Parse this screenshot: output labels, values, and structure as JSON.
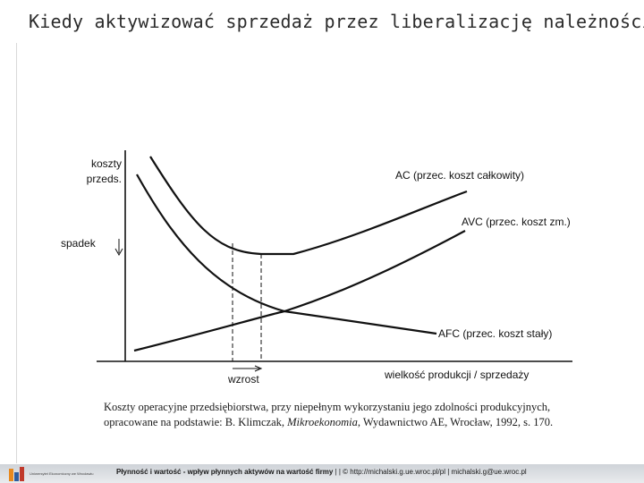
{
  "slide": {
    "title": "Kiedy aktywizować sprzedaż przez liberalizację należności"
  },
  "diagram": {
    "y_axis_label_line1": "koszty",
    "y_axis_label_line2": "przeds.",
    "y_marker_label": "spadek",
    "x_marker_label": "wzrost",
    "x_axis_label": "wielkość produkcji / sprzedaży",
    "curves": {
      "ac": "AC (przec. koszt całkowity)",
      "avc": "AVC (przec. koszt zm.)",
      "afc": "AFC (przec. koszt stały)"
    }
  },
  "caption": {
    "line1": "Koszty operacyjne przedsiębiorstwa, przy niepełnym wykorzystaniu jego zdolności produkcyjnych,",
    "line2_prefix": "opracowane na podstawie: B. Klimczak, ",
    "line2_book": "Mikroekonomia",
    "line2_suffix": ", Wydawnictwo AE, Wrocław, 1992, s. 170."
  },
  "footer": {
    "logo_text": "Uniwersytet Ekonomiczny we Wrocławiu",
    "topic": "Płynność i wartość - wpływ płynnych aktywów na wartość firmy",
    "separator": "| | ©",
    "url": "http://michalski.g.ue.wroc.pl/pl",
    "separator2": "|",
    "email": "michalski.g@ue.wroc.pl"
  },
  "colors": {
    "logo_orange": "#e8891e",
    "logo_blue": "#2f5d9e",
    "logo_red": "#c0392b"
  }
}
